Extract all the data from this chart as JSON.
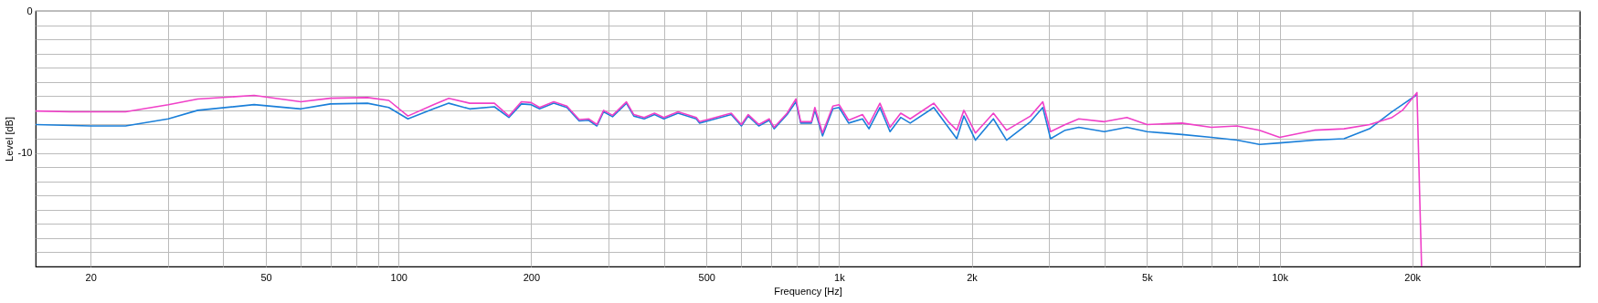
{
  "chart_data": {
    "type": "line",
    "xlabel": "Frequency [Hz]",
    "ylabel": "Level [dB]",
    "log": "x",
    "grid": true,
    "legend": false,
    "xlim": [
      15,
      48000
    ],
    "ylim": [
      -18,
      0
    ],
    "xticks": [
      {
        "value": 20,
        "label": "20"
      },
      {
        "value": 30,
        "label": null
      },
      {
        "value": 40,
        "label": null
      },
      {
        "value": 50,
        "label": "50"
      },
      {
        "value": 60,
        "label": null
      },
      {
        "value": 70,
        "label": null
      },
      {
        "value": 80,
        "label": null
      },
      {
        "value": 90,
        "label": null
      },
      {
        "value": 100,
        "label": "100"
      },
      {
        "value": 200,
        "label": "200"
      },
      {
        "value": 300,
        "label": null
      },
      {
        "value": 400,
        "label": null
      },
      {
        "value": 500,
        "label": "500"
      },
      {
        "value": 600,
        "label": null
      },
      {
        "value": 700,
        "label": null
      },
      {
        "value": 800,
        "label": null
      },
      {
        "value": 900,
        "label": null
      },
      {
        "value": 1000,
        "label": "1k"
      },
      {
        "value": 2000,
        "label": "2k"
      },
      {
        "value": 3000,
        "label": null
      },
      {
        "value": 4000,
        "label": null
      },
      {
        "value": 5000,
        "label": "5k"
      },
      {
        "value": 6000,
        "label": null
      },
      {
        "value": 7000,
        "label": null
      },
      {
        "value": 8000,
        "label": null
      },
      {
        "value": 9000,
        "label": null
      },
      {
        "value": 10000,
        "label": "10k"
      },
      {
        "value": 20000,
        "label": "20k"
      },
      {
        "value": 30000,
        "label": null
      },
      {
        "value": 40000,
        "label": null
      }
    ],
    "yticks": [
      0,
      {
        "value": -1,
        "label": null
      },
      {
        "value": -2,
        "label": null
      },
      {
        "value": -3,
        "label": null
      },
      {
        "value": -4,
        "label": null
      },
      {
        "value": -5,
        "label": null
      },
      {
        "value": -6,
        "label": null
      },
      {
        "value": -7,
        "label": null
      },
      {
        "value": -8,
        "label": null
      },
      {
        "value": -9,
        "label": null
      },
      -10,
      {
        "value": -11,
        "label": null
      },
      {
        "value": -12,
        "label": null
      },
      {
        "value": -13,
        "label": null
      },
      {
        "value": -14,
        "label": null
      },
      {
        "value": -15,
        "label": null
      },
      {
        "value": -16,
        "label": null
      },
      {
        "value": -17,
        "label": null
      }
    ],
    "series": [
      {
        "color": "#1a7fd9",
        "x": [
          15,
          20,
          24,
          30,
          35,
          47,
          60,
          70,
          85,
          95,
          105,
          120,
          130,
          145,
          165,
          178,
          190,
          200,
          209,
          225,
          241,
          257,
          270,
          282,
          292,
          306,
          329,
          342,
          361,
          381,
          400,
          431,
          474,
          482,
          510,
          569,
          600,
          622,
          657,
          694,
          712,
          762,
          798,
          818,
          865,
          881,
          917,
          968,
          1000,
          1051,
          1130,
          1169,
          1238,
          1305,
          1380,
          1450,
          1640,
          1770,
          1850,
          1920,
          2040,
          2240,
          2400,
          2720,
          2900,
          3020,
          3260,
          3500,
          4000,
          4500,
          5000,
          6000,
          7000,
          8000,
          9000,
          10000,
          12000,
          14000,
          16000,
          18000,
          19000,
          20500
        ],
        "values": [
          -8.0,
          -8.1,
          -8.1,
          -7.6,
          -7.0,
          -6.6,
          -6.9,
          -6.55,
          -6.5,
          -6.8,
          -7.6,
          -6.9,
          -6.5,
          -6.9,
          -6.75,
          -7.5,
          -6.55,
          -6.6,
          -6.9,
          -6.5,
          -6.8,
          -7.75,
          -7.7,
          -8.1,
          -7.1,
          -7.45,
          -6.5,
          -7.4,
          -7.6,
          -7.3,
          -7.6,
          -7.2,
          -7.6,
          -7.9,
          -7.7,
          -7.3,
          -8.1,
          -7.4,
          -8.1,
          -7.7,
          -8.3,
          -7.3,
          -6.4,
          -7.9,
          -7.9,
          -7.0,
          -8.8,
          -6.9,
          -6.8,
          -7.9,
          -7.6,
          -8.3,
          -6.8,
          -8.5,
          -7.5,
          -7.9,
          -6.8,
          -8.2,
          -9.0,
          -7.4,
          -9.1,
          -7.6,
          -9.1,
          -7.8,
          -6.8,
          -9.0,
          -8.4,
          -8.2,
          -8.5,
          -8.2,
          -8.5,
          -8.7,
          -8.9,
          -9.1,
          -9.4,
          -9.3,
          -9.1,
          -9.0,
          -8.3,
          -7.1,
          -6.6,
          -5.9
        ]
      },
      {
        "color": "#f040c8",
        "x": [
          15,
          18,
          24,
          30,
          35,
          47,
          60,
          70,
          85,
          95,
          105,
          120,
          130,
          145,
          165,
          178,
          190,
          200,
          209,
          225,
          241,
          257,
          270,
          282,
          292,
          306,
          329,
          342,
          361,
          381,
          400,
          431,
          474,
          482,
          510,
          569,
          600,
          622,
          657,
          694,
          712,
          762,
          798,
          818,
          865,
          881,
          917,
          968,
          1000,
          1051,
          1130,
          1169,
          1238,
          1305,
          1380,
          1450,
          1640,
          1770,
          1850,
          1920,
          2040,
          2240,
          2400,
          2720,
          2900,
          3020,
          3260,
          3500,
          4000,
          4500,
          5000,
          6000,
          7000,
          8000,
          9000,
          10000,
          12000,
          14000,
          16000,
          18000,
          19000,
          20500,
          21000
        ],
        "values": [
          -7.05,
          -7.1,
          -7.1,
          -6.6,
          -6.2,
          -5.95,
          -6.4,
          -6.15,
          -6.1,
          -6.3,
          -7.4,
          -6.6,
          -6.15,
          -6.5,
          -6.5,
          -7.4,
          -6.4,
          -6.45,
          -6.8,
          -6.4,
          -6.7,
          -7.65,
          -7.6,
          -8.0,
          -7.0,
          -7.35,
          -6.4,
          -7.3,
          -7.5,
          -7.2,
          -7.5,
          -7.1,
          -7.5,
          -7.8,
          -7.6,
          -7.2,
          -8.0,
          -7.3,
          -8.0,
          -7.6,
          -8.2,
          -7.2,
          -6.2,
          -7.8,
          -7.8,
          -6.8,
          -8.6,
          -6.7,
          -6.6,
          -7.7,
          -7.3,
          -8.0,
          -6.5,
          -8.2,
          -7.2,
          -7.6,
          -6.5,
          -7.8,
          -8.4,
          -7.0,
          -8.6,
          -7.2,
          -8.4,
          -7.4,
          -6.4,
          -8.5,
          -8.0,
          -7.6,
          -7.8,
          -7.5,
          -8.0,
          -7.9,
          -8.2,
          -8.1,
          -8.4,
          -8.9,
          -8.4,
          -8.3,
          -8.0,
          -7.5,
          -7.0,
          -5.75,
          -18
        ]
      }
    ]
  }
}
